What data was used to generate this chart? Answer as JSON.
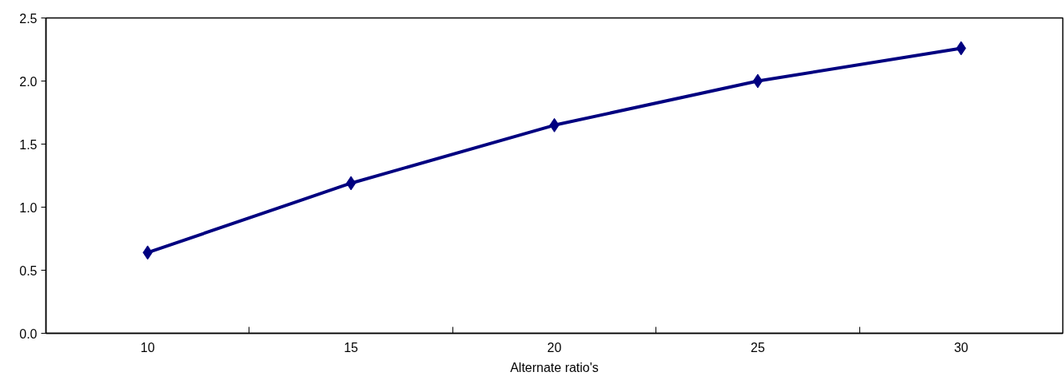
{
  "chart_data": {
    "type": "line",
    "xlabel": "Alternate ratio's",
    "categories": [
      "10",
      "15",
      "20",
      "25",
      "30"
    ],
    "series": [
      {
        "color": "#000080",
        "values": [
          0.64,
          1.19,
          1.65,
          2.0,
          2.26
        ]
      }
    ],
    "ylim": [
      0,
      2.5
    ],
    "yticks": [
      {
        "value": 0,
        "label": "0.0"
      },
      {
        "value": 0.5,
        "label": "0.5"
      },
      {
        "value": 1,
        "label": "1.0"
      },
      {
        "value": 1.5,
        "label": "1.5"
      },
      {
        "value": 2,
        "label": "2.0"
      },
      {
        "value": 2.5,
        "label": "2.5"
      }
    ],
    "marker": "diamond",
    "line_style": "solid"
  }
}
